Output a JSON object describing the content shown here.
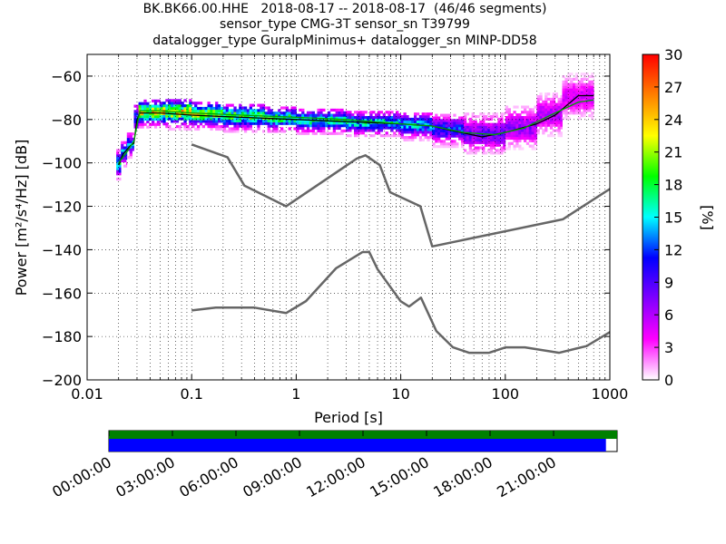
{
  "title_lines": [
    "BK.BK66.00.HHE   2018-08-17 -- 2018-08-17  (46/46 segments)",
    "sensor_type CMG-3T sensor_sn T39799",
    "datalogger_type GuralpMinimus+ datalogger_sn MINP-DD58"
  ],
  "chart_data": {
    "type": "heatmap",
    "xlabel": "Period [s]",
    "ylabel": "Power [m²/s⁴/Hz] [dB]",
    "xscale": "log",
    "xlim": [
      0.01,
      1000
    ],
    "ylim": [
      -200,
      -50
    ],
    "xticks": [
      0.01,
      0.1,
      1,
      10,
      100,
      1000
    ],
    "xtick_labels": [
      "0.01",
      "0.1",
      "1",
      "10",
      "100",
      "1000"
    ],
    "yticks": [
      -200,
      -180,
      -160,
      -140,
      -120,
      -100,
      -80,
      -60
    ],
    "ytick_labels": [
      "−200",
      "−180",
      "−160",
      "−140",
      "−120",
      "−100",
      "−80",
      "−60"
    ],
    "grid": true,
    "colorbar": {
      "label": "[%]",
      "range": [
        0,
        30
      ],
      "ticks": [
        0,
        3,
        6,
        9,
        12,
        15,
        18,
        21,
        24,
        27,
        30
      ],
      "colormap": [
        "#ffffff",
        "#ff00ff",
        "#8000ff",
        "#0000ff",
        "#00ffff",
        "#00ff00",
        "#ffff00",
        "#ff8000",
        "#ff0000"
      ]
    },
    "series": [
      {
        "name": "",
        "role": "mean",
        "color": "#000000",
        "points": [
          [
            0.02,
            -101
          ],
          [
            0.022,
            -96
          ],
          [
            0.026,
            -92
          ],
          [
            0.028,
            -91
          ],
          [
            0.03,
            -80
          ],
          [
            0.032,
            -77
          ],
          [
            0.05,
            -77
          ],
          [
            0.1,
            -78
          ],
          [
            0.3,
            -79
          ],
          [
            1,
            -80
          ],
          [
            3,
            -81
          ],
          [
            10,
            -82
          ],
          [
            20,
            -83
          ],
          [
            30,
            -85
          ],
          [
            60,
            -88
          ],
          [
            100,
            -86
          ],
          [
            200,
            -82
          ],
          [
            300,
            -78
          ],
          [
            500,
            -69
          ],
          [
            700,
            -69
          ]
        ]
      },
      {
        "name": "",
        "role": "mode",
        "color": "#00a000",
        "points": [
          [
            0.02,
            -100
          ],
          [
            0.024,
            -95
          ],
          [
            0.028,
            -90
          ],
          [
            0.032,
            -76
          ],
          [
            0.05,
            -76
          ],
          [
            0.1,
            -77
          ],
          [
            0.3,
            -78
          ],
          [
            1,
            -79
          ],
          [
            3,
            -80
          ],
          [
            10,
            -82
          ],
          [
            20,
            -83
          ],
          [
            40,
            -86
          ],
          [
            80,
            -87
          ],
          [
            150,
            -84
          ],
          [
            300,
            -77
          ],
          [
            500,
            -72
          ],
          [
            700,
            -71
          ]
        ]
      },
      {
        "name": "",
        "role": "NHNM",
        "color": "#666666",
        "points": [
          [
            0.1,
            -91.5
          ],
          [
            0.22,
            -97.4
          ],
          [
            0.32,
            -110.5
          ],
          [
            0.8,
            -120
          ],
          [
            3.8,
            -98
          ],
          [
            4.6,
            -96.5
          ],
          [
            6.3,
            -101
          ],
          [
            7.9,
            -113.5
          ],
          [
            15.4,
            -120
          ],
          [
            20,
            -138.5
          ],
          [
            354.8,
            -126
          ],
          [
            1000,
            -112
          ]
        ]
      },
      {
        "name": "",
        "role": "NLNM",
        "color": "#666666",
        "points": [
          [
            0.1,
            -168
          ],
          [
            0.17,
            -166.7
          ],
          [
            0.4,
            -166.7
          ],
          [
            0.8,
            -169.2
          ],
          [
            1.24,
            -163.7
          ],
          [
            2.4,
            -148.6
          ],
          [
            4.3,
            -141.1
          ],
          [
            5,
            -141.1
          ],
          [
            6,
            -149
          ],
          [
            10,
            -163.8
          ],
          [
            12,
            -166.2
          ],
          [
            15.6,
            -162.1
          ],
          [
            21.9,
            -177.5
          ],
          [
            31.6,
            -185
          ],
          [
            45,
            -187.5
          ],
          [
            70,
            -187.5
          ],
          [
            101,
            -185
          ],
          [
            154,
            -185
          ],
          [
            328,
            -187.5
          ],
          [
            600,
            -184.4
          ],
          [
            1000,
            -178
          ]
        ]
      }
    ],
    "density": [
      {
        "p_from": 0.019,
        "p_to": 0.021,
        "y_low": -108,
        "y_high": -94,
        "peak": -101,
        "level": 15
      },
      {
        "p_from": 0.021,
        "p_to": 0.024,
        "y_low": -102,
        "y_high": -90,
        "peak": -96,
        "level": 14
      },
      {
        "p_from": 0.024,
        "p_to": 0.028,
        "y_low": -98,
        "y_high": -86,
        "peak": -92,
        "level": 13
      },
      {
        "p_from": 0.028,
        "p_to": 0.031,
        "y_low": -90,
        "y_high": -74,
        "peak": -80,
        "level": 12
      },
      {
        "p_from": 0.031,
        "p_to": 0.05,
        "y_low": -84,
        "y_high": -71,
        "peak": -77,
        "level": 22
      },
      {
        "p_from": 0.05,
        "p_to": 0.1,
        "y_low": -85,
        "y_high": -71,
        "peak": -77,
        "level": 22
      },
      {
        "p_from": 0.1,
        "p_to": 0.2,
        "y_low": -85,
        "y_high": -72,
        "peak": -78,
        "level": 20
      },
      {
        "p_from": 0.2,
        "p_to": 0.5,
        "y_low": -86,
        "y_high": -73,
        "peak": -79,
        "level": 18
      },
      {
        "p_from": 0.5,
        "p_to": 1,
        "y_low": -86,
        "y_high": -74,
        "peak": -80,
        "level": 17
      },
      {
        "p_from": 1,
        "p_to": 3,
        "y_low": -87,
        "y_high": -75,
        "peak": -81,
        "level": 16
      },
      {
        "p_from": 3,
        "p_to": 10,
        "y_low": -88,
        "y_high": -76,
        "peak": -82,
        "level": 15
      },
      {
        "p_from": 10,
        "p_to": 20,
        "y_low": -90,
        "y_high": -77,
        "peak": -83,
        "level": 14
      },
      {
        "p_from": 20,
        "p_to": 40,
        "y_low": -93,
        "y_high": -78,
        "peak": -85,
        "level": 11
      },
      {
        "p_from": 40,
        "p_to": 100,
        "y_low": -96,
        "y_high": -77,
        "peak": -87,
        "level": 8
      },
      {
        "p_from": 100,
        "p_to": 200,
        "y_low": -94,
        "y_high": -74,
        "peak": -84,
        "level": 7
      },
      {
        "p_from": 200,
        "p_to": 350,
        "y_low": -88,
        "y_high": -68,
        "peak": -78,
        "level": 6
      },
      {
        "p_from": 350,
        "p_to": 700,
        "y_low": -80,
        "y_high": -59,
        "peak": -70,
        "level": 5
      }
    ]
  },
  "timeline": {
    "tick_labels": [
      "00:00:00",
      "03:00:00",
      "06:00:00",
      "09:00:00",
      "12:00:00",
      "15:00:00",
      "18:00:00",
      "21:00:00"
    ],
    "data_coverage_fraction": 1.0,
    "psd_coverage_fraction": 0.978,
    "data_color": "#008000",
    "psd_color": "#0000ff"
  }
}
